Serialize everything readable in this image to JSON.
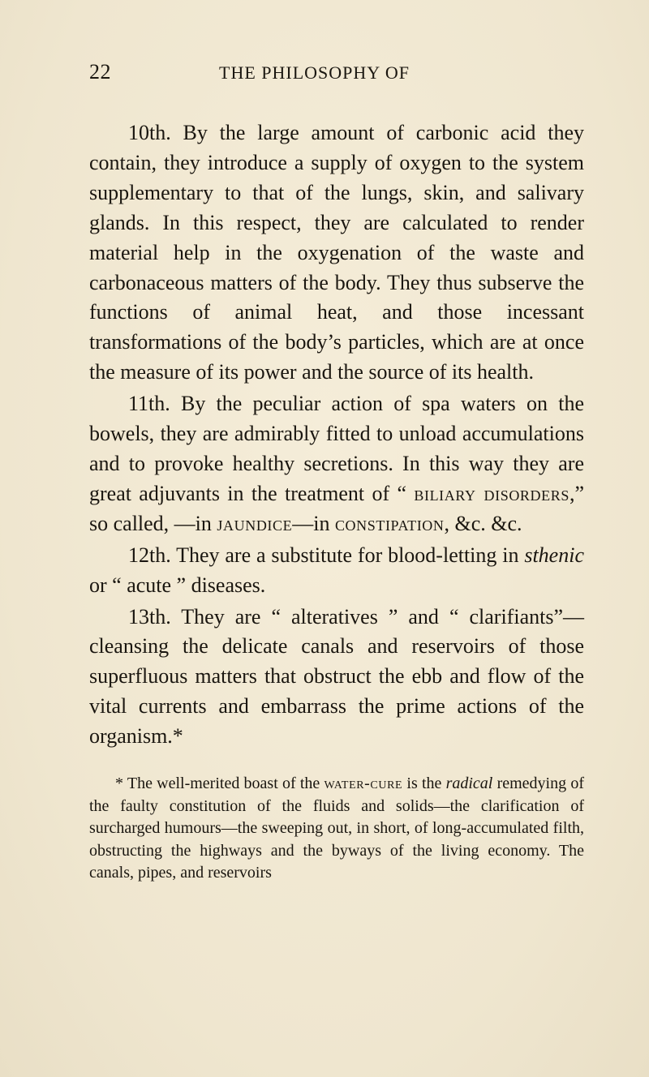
{
  "header": {
    "page_number": "22",
    "running_title": "THE PHILOSOPHY OF"
  },
  "paragraphs": {
    "p1": "10th. By the large amount of carbonic acid they contain, they introduce a supply of oxygen to the system supplementary to that of the lungs, skin, and salivary glands. In this re­spect, they are calculated to render material help in the oxygenation of the waste and carbonaceous matters of the body. They thus subserve the functions of animal heat, and those incessant transformations of the body’s particles, which are at once the measure of its power and the source of its health.",
    "p2_a": "11th. By the peculiar action of spa waters on the bowels, they are admirably fitted to unload accumulations and to provoke healthy secretions. In this way they are great adjuvants in the treatment of “ ",
    "p2_sc1": "biliary disorders",
    "p2_b": ",” so called, —in ",
    "p2_sc2": "jaundice",
    "p2_c": "—in ",
    "p2_sc3": "constipation",
    "p2_d": ", &c. &c.",
    "p3_a": "12th. They are a substitute for blood-letting in ",
    "p3_i": "sthenic",
    "p3_b": " or “ acute ” diseases.",
    "p4": "13th. They are “ alteratives ” and “ clarifi­ants”—cleansing the delicate canals and reser­voirs of those superfluous matters that obstruct the ebb and flow of the vital currents and em­barrass the prime actions of the organism.*",
    "footnote_a": "* The well-merited boast of the ",
    "footnote_sc": "water-cure",
    "footnote_b": " is the ",
    "footnote_i": "radical",
    "footnote_c": " remedying of the faulty constitution of the fluids and solids—the clarification of surcharged humours—the sweeping out, in short, of long-accumulated filth, obstructing the highways and the by­ways of the living economy. The canals, pipes, and reservoirs"
  }
}
